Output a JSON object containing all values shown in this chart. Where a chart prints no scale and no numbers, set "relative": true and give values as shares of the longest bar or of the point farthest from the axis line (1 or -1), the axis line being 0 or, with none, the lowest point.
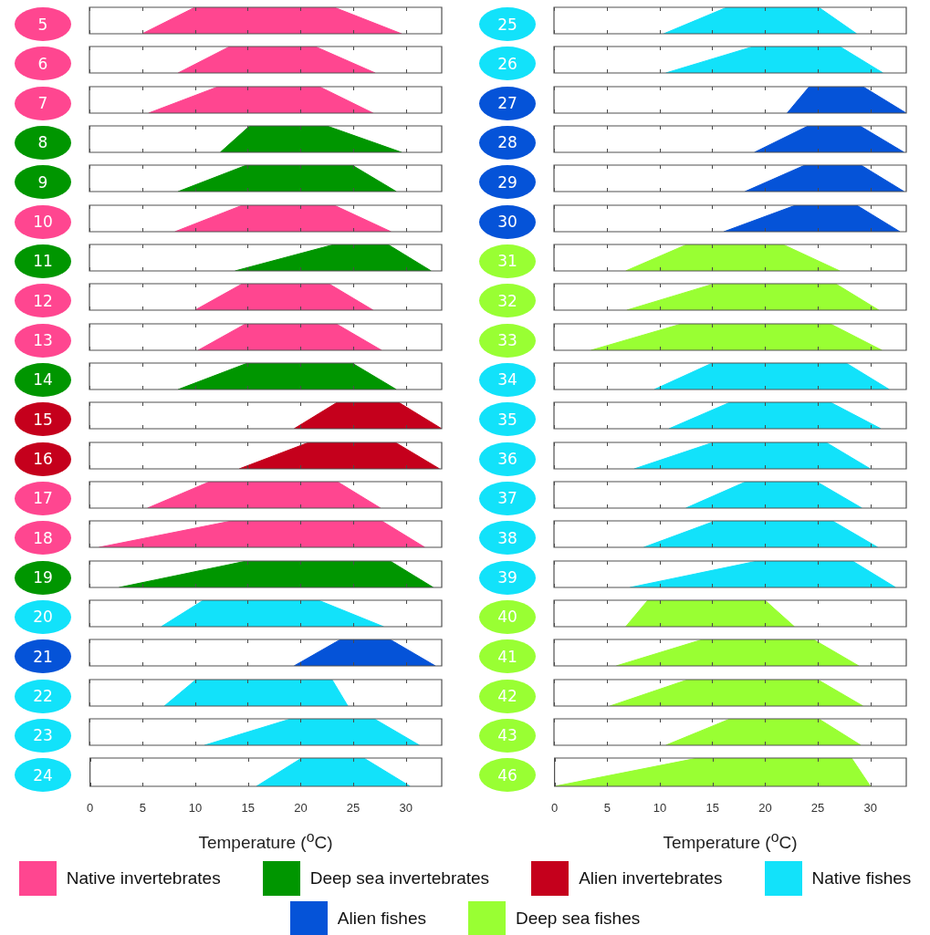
{
  "chart_data": [
    {
      "type": "area",
      "title": "5",
      "x": [
        5.0,
        10.0,
        23.2,
        29.6
      ],
      "series": [
        {
          "name": "Native invertebrates",
          "color": "#ff4690",
          "values": [
            0,
            1,
            1,
            0
          ]
        }
      ],
      "relative": true,
      "xlim": [
        0,
        33.4
      ],
      "xticks": [
        0,
        5,
        10,
        15,
        20,
        25,
        30
      ],
      "tick_labels": false,
      "legend": "bottom"
    },
    {
      "type": "area",
      "title": "6",
      "x": [
        8.4,
        13.3,
        21.4,
        27.1
      ],
      "series": [
        {
          "name": "Native invertebrates",
          "color": "#ff4690",
          "values": [
            0,
            1,
            1,
            0
          ]
        }
      ],
      "relative": true,
      "xlim": [
        0,
        33.4
      ],
      "xticks": [
        0,
        5,
        10,
        15,
        20,
        25,
        30
      ],
      "tick_labels": false,
      "legend": "bottom"
    },
    {
      "type": "area",
      "title": "7",
      "x": [
        5.6,
        12.2,
        21.8,
        26.9
      ],
      "series": [
        {
          "name": "Native invertebrates",
          "color": "#ff4690",
          "values": [
            0,
            1,
            1,
            0
          ]
        }
      ],
      "relative": true,
      "xlim": [
        0,
        33.4
      ],
      "xticks": [
        0,
        5,
        10,
        15,
        20,
        25,
        30
      ],
      "tick_labels": false,
      "legend": "bottom"
    },
    {
      "type": "area",
      "title": "8",
      "x": [
        12.4,
        15.2,
        22.5,
        29.6
      ],
      "series": [
        {
          "name": "Deep sea invertebrates",
          "color": "#009600",
          "values": [
            0,
            1,
            1,
            0
          ]
        }
      ],
      "relative": true,
      "xlim": [
        0,
        33.4
      ],
      "xticks": [
        0,
        5,
        10,
        15,
        20,
        25,
        30
      ],
      "tick_labels": false,
      "legend": "bottom"
    },
    {
      "type": "area",
      "title": "9",
      "x": [
        8.4,
        14.9,
        24.9,
        29.1
      ],
      "series": [
        {
          "name": "Deep sea invertebrates",
          "color": "#009600",
          "values": [
            0,
            1,
            1,
            0
          ]
        }
      ],
      "relative": true,
      "xlim": [
        0,
        33.4
      ],
      "xticks": [
        0,
        5,
        10,
        15,
        20,
        25,
        30
      ],
      "tick_labels": false,
      "legend": "bottom"
    },
    {
      "type": "area",
      "title": "10",
      "x": [
        8.1,
        14.5,
        23.2,
        28.6
      ],
      "series": [
        {
          "name": "Native invertebrates",
          "color": "#ff4690",
          "values": [
            0,
            1,
            1,
            0
          ]
        }
      ],
      "relative": true,
      "xlim": [
        0,
        33.4
      ],
      "xticks": [
        0,
        5,
        10,
        15,
        20,
        25,
        30
      ],
      "tick_labels": false,
      "legend": "bottom"
    },
    {
      "type": "area",
      "title": "11",
      "x": [
        13.8,
        23.2,
        28.3,
        32.4
      ],
      "series": [
        {
          "name": "Deep sea invertebrates",
          "color": "#009600",
          "values": [
            0,
            1,
            1,
            0
          ]
        }
      ],
      "relative": true,
      "xlim": [
        0,
        33.4
      ],
      "xticks": [
        0,
        5,
        10,
        15,
        20,
        25,
        30
      ],
      "tick_labels": false,
      "legend": "bottom"
    },
    {
      "type": "area",
      "title": "12",
      "x": [
        10.0,
        14.5,
        22.7,
        26.9
      ],
      "series": [
        {
          "name": "Native invertebrates",
          "color": "#ff4690",
          "values": [
            0,
            1,
            1,
            0
          ]
        }
      ],
      "relative": true,
      "xlim": [
        0,
        33.4
      ],
      "xticks": [
        0,
        5,
        10,
        15,
        20,
        25,
        30
      ],
      "tick_labels": false,
      "legend": "bottom"
    },
    {
      "type": "area",
      "title": "13",
      "x": [
        10.3,
        14.8,
        23.4,
        27.7
      ],
      "series": [
        {
          "name": "Native invertebrates",
          "color": "#ff4690",
          "values": [
            0,
            1,
            1,
            0
          ]
        }
      ],
      "relative": true,
      "xlim": [
        0,
        33.4
      ],
      "xticks": [
        0,
        5,
        10,
        15,
        20,
        25,
        30
      ],
      "tick_labels": false,
      "legend": "bottom"
    },
    {
      "type": "area",
      "title": "14",
      "x": [
        8.4,
        15.0,
        24.9,
        29.1
      ],
      "series": [
        {
          "name": "Deep sea invertebrates",
          "color": "#009600",
          "values": [
            0,
            1,
            1,
            0
          ]
        }
      ],
      "relative": true,
      "xlim": [
        0,
        33.4
      ],
      "xticks": [
        0,
        5,
        10,
        15,
        20,
        25,
        30
      ],
      "tick_labels": false,
      "legend": "bottom"
    },
    {
      "type": "area",
      "title": "15",
      "x": [
        19.4,
        23.5,
        29.3,
        33.4
      ],
      "series": [
        {
          "name": "Alien invertebrates",
          "color": "#c5001c",
          "values": [
            0,
            1,
            1,
            0
          ]
        }
      ],
      "relative": true,
      "xlim": [
        0,
        33.4
      ],
      "xticks": [
        0,
        5,
        10,
        15,
        20,
        25,
        30
      ],
      "tick_labels": false,
      "legend": "bottom"
    },
    {
      "type": "area",
      "title": "16",
      "x": [
        14.2,
        20.8,
        29.0,
        33.2
      ],
      "series": [
        {
          "name": "Alien invertebrates",
          "color": "#c5001c",
          "values": [
            0,
            1,
            1,
            0
          ]
        }
      ],
      "relative": true,
      "xlim": [
        0,
        33.4
      ],
      "xticks": [
        0,
        5,
        10,
        15,
        20,
        25,
        30
      ],
      "tick_labels": false,
      "legend": "bottom"
    },
    {
      "type": "area",
      "title": "17",
      "x": [
        5.5,
        11.4,
        23.5,
        27.6
      ],
      "series": [
        {
          "name": "Native invertebrates",
          "color": "#ff4690",
          "values": [
            0,
            1,
            1,
            0
          ]
        }
      ],
      "relative": true,
      "xlim": [
        0,
        33.4
      ],
      "xticks": [
        0,
        5,
        10,
        15,
        20,
        25,
        30
      ],
      "tick_labels": false,
      "legend": "bottom"
    },
    {
      "type": "area",
      "title": "18",
      "x": [
        0.9,
        13.5,
        27.7,
        31.8
      ],
      "series": [
        {
          "name": "Native invertebrates",
          "color": "#ff4690",
          "values": [
            0,
            1,
            1,
            0
          ]
        }
      ],
      "relative": true,
      "xlim": [
        0,
        33.4
      ],
      "xticks": [
        0,
        5,
        10,
        15,
        20,
        25,
        30
      ],
      "tick_labels": false,
      "legend": "bottom"
    },
    {
      "type": "area",
      "title": "19",
      "x": [
        2.8,
        14.9,
        28.5,
        32.6
      ],
      "series": [
        {
          "name": "Deep sea invertebrates",
          "color": "#009600",
          "values": [
            0,
            1,
            1,
            0
          ]
        }
      ],
      "relative": true,
      "xlim": [
        0,
        33.4
      ],
      "xticks": [
        0,
        5,
        10,
        15,
        20,
        25,
        30
      ],
      "tick_labels": false,
      "legend": "bottom"
    },
    {
      "type": "area",
      "title": "20",
      "x": [
        6.8,
        10.8,
        21.7,
        27.9
      ],
      "series": [
        {
          "name": "Native fishes",
          "color": "#12e2fa",
          "values": [
            0,
            1,
            1,
            0
          ]
        }
      ],
      "relative": true,
      "xlim": [
        0,
        33.4
      ],
      "xticks": [
        0,
        5,
        10,
        15,
        20,
        25,
        30
      ],
      "tick_labels": false,
      "legend": "bottom"
    },
    {
      "type": "area",
      "title": "21",
      "x": [
        19.4,
        23.8,
        28.5,
        32.8
      ],
      "series": [
        {
          "name": "Alien fishes",
          "color": "#0553d8",
          "values": [
            0,
            1,
            1,
            0
          ]
        }
      ],
      "relative": true,
      "xlim": [
        0,
        33.4
      ],
      "xticks": [
        0,
        5,
        10,
        15,
        20,
        25,
        30
      ],
      "tick_labels": false,
      "legend": "bottom"
    },
    {
      "type": "area",
      "title": "22",
      "x": [
        7.1,
        10.1,
        23.0,
        24.5
      ],
      "series": [
        {
          "name": "Native fishes",
          "color": "#12e2fa",
          "values": [
            0,
            1,
            1,
            0
          ]
        }
      ],
      "relative": true,
      "xlim": [
        0,
        33.4
      ],
      "xticks": [
        0,
        5,
        10,
        15,
        20,
        25,
        30
      ],
      "tick_labels": false,
      "legend": "bottom"
    },
    {
      "type": "area",
      "title": "23",
      "x": [
        10.9,
        19.1,
        27.0,
        31.3
      ],
      "series": [
        {
          "name": "Native fishes",
          "color": "#12e2fa",
          "values": [
            0,
            1,
            1,
            0
          ]
        }
      ],
      "relative": true,
      "xlim": [
        0,
        33.4
      ],
      "xticks": [
        0,
        5,
        10,
        15,
        20,
        25,
        30
      ],
      "tick_labels": false,
      "legend": "bottom"
    },
    {
      "type": "area",
      "title": "24",
      "xlabel": "Temperature ($^{o}$C)",
      "x": [
        15.8,
        20.1,
        26.0,
        30.4
      ],
      "series": [
        {
          "name": "Native fishes",
          "color": "#12e2fa",
          "values": [
            0,
            1,
            1,
            0
          ]
        }
      ],
      "relative": true,
      "xlim": [
        0,
        33.4
      ],
      "xticks": [
        0,
        5,
        10,
        15,
        20,
        25,
        30
      ],
      "legend": "bottom"
    },
    {
      "type": "area",
      "title": "25",
      "x": [
        10.4,
        16.4,
        25.1,
        28.7
      ],
      "series": [
        {
          "name": "Native fishes",
          "color": "#12e2fa",
          "values": [
            0,
            1,
            1,
            0
          ]
        }
      ],
      "relative": true,
      "xlim": [
        0,
        33.4
      ],
      "xticks": [
        0,
        5,
        10,
        15,
        20,
        25,
        30
      ],
      "tick_labels": false,
      "legend": "bottom"
    },
    {
      "type": "area",
      "title": "26",
      "x": [
        10.6,
        18.9,
        27.1,
        31.2
      ],
      "series": [
        {
          "name": "Native fishes",
          "color": "#12e2fa",
          "values": [
            0,
            1,
            1,
            0
          ]
        }
      ],
      "relative": true,
      "xlim": [
        0,
        33.4
      ],
      "xticks": [
        0,
        5,
        10,
        15,
        20,
        25,
        30
      ],
      "tick_labels": false,
      "legend": "bottom"
    },
    {
      "type": "area",
      "title": "27",
      "x": [
        22.1,
        24.2,
        29.3,
        33.4
      ],
      "series": [
        {
          "name": "Alien fishes",
          "color": "#0553d8",
          "values": [
            0,
            1,
            1,
            0
          ]
        }
      ],
      "relative": true,
      "xlim": [
        0,
        33.4
      ],
      "xticks": [
        0,
        5,
        10,
        15,
        20,
        25,
        30
      ],
      "tick_labels": false,
      "legend": "bottom"
    },
    {
      "type": "area",
      "title": "28",
      "x": [
        19.0,
        24.1,
        29.0,
        33.2
      ],
      "series": [
        {
          "name": "Alien fishes",
          "color": "#0553d8",
          "values": [
            0,
            1,
            1,
            0
          ]
        }
      ],
      "relative": true,
      "xlim": [
        0,
        33.4
      ],
      "xticks": [
        0,
        5,
        10,
        15,
        20,
        25,
        30
      ],
      "tick_labels": false,
      "legend": "bottom"
    },
    {
      "type": "area",
      "title": "29",
      "x": [
        18.1,
        23.8,
        29.1,
        33.2
      ],
      "series": [
        {
          "name": "Alien fishes",
          "color": "#0553d8",
          "values": [
            0,
            1,
            1,
            0
          ]
        }
      ],
      "relative": true,
      "xlim": [
        0,
        33.4
      ],
      "xticks": [
        0,
        5,
        10,
        15,
        20,
        25,
        30
      ],
      "tick_labels": false,
      "legend": "bottom"
    },
    {
      "type": "area",
      "title": "30",
      "x": [
        16.1,
        22.9,
        28.7,
        32.8
      ],
      "series": [
        {
          "name": "Alien fishes",
          "color": "#0553d8",
          "values": [
            0,
            1,
            1,
            0
          ]
        }
      ],
      "relative": true,
      "xlim": [
        0,
        33.4
      ],
      "xticks": [
        0,
        5,
        10,
        15,
        20,
        25,
        30
      ],
      "tick_labels": false,
      "legend": "bottom"
    },
    {
      "type": "area",
      "title": "31",
      "x": [
        6.8,
        12.6,
        21.7,
        27.1
      ],
      "series": [
        {
          "name": "Deep sea fishes",
          "color": "#99ff33",
          "values": [
            0,
            1,
            1,
            0
          ]
        }
      ],
      "relative": true,
      "xlim": [
        0,
        33.4
      ],
      "xticks": [
        0,
        5,
        10,
        15,
        20,
        25,
        30
      ],
      "tick_labels": false,
      "legend": "bottom"
    },
    {
      "type": "area",
      "title": "32",
      "x": [
        6.9,
        15.2,
        26.7,
        30.8
      ],
      "series": [
        {
          "name": "Deep sea fishes",
          "color": "#99ff33",
          "values": [
            0,
            1,
            1,
            0
          ]
        }
      ],
      "relative": true,
      "xlim": [
        0,
        33.4
      ],
      "xticks": [
        0,
        5,
        10,
        15,
        20,
        25,
        30
      ],
      "tick_labels": false,
      "legend": "bottom"
    },
    {
      "type": "area",
      "title": "33",
      "x": [
        3.5,
        12.1,
        26.2,
        31.1
      ],
      "series": [
        {
          "name": "Deep sea fishes",
          "color": "#99ff33",
          "values": [
            0,
            1,
            1,
            0
          ]
        }
      ],
      "relative": true,
      "xlim": [
        0,
        33.4
      ],
      "xticks": [
        0,
        5,
        10,
        15,
        20,
        25,
        30
      ],
      "tick_labels": false,
      "legend": "bottom"
    },
    {
      "type": "area",
      "title": "34",
      "x": [
        9.5,
        15.0,
        27.7,
        31.8
      ],
      "series": [
        {
          "name": "Native fishes",
          "color": "#12e2fa",
          "values": [
            0,
            1,
            1,
            0
          ]
        }
      ],
      "relative": true,
      "xlim": [
        0,
        33.4
      ],
      "xticks": [
        0,
        5,
        10,
        15,
        20,
        25,
        30
      ],
      "tick_labels": false,
      "legend": "bottom"
    },
    {
      "type": "area",
      "title": "35",
      "x": [
        10.9,
        16.7,
        26.2,
        31.0
      ],
      "series": [
        {
          "name": "Native fishes",
          "color": "#12e2fa",
          "values": [
            0,
            1,
            1,
            0
          ]
        }
      ],
      "relative": true,
      "xlim": [
        0,
        33.4
      ],
      "xticks": [
        0,
        5,
        10,
        15,
        20,
        25,
        30
      ],
      "tick_labels": false,
      "legend": "bottom"
    },
    {
      "type": "area",
      "title": "36",
      "x": [
        7.6,
        15.1,
        25.8,
        30.0
      ],
      "series": [
        {
          "name": "Native fishes",
          "color": "#12e2fa",
          "values": [
            0,
            1,
            1,
            0
          ]
        }
      ],
      "relative": true,
      "xlim": [
        0,
        33.4
      ],
      "xticks": [
        0,
        5,
        10,
        15,
        20,
        25,
        30
      ],
      "tick_labels": false,
      "legend": "bottom"
    },
    {
      "type": "area",
      "title": "37",
      "x": [
        12.5,
        18.2,
        24.9,
        29.2
      ],
      "series": [
        {
          "name": "Native fishes",
          "color": "#12e2fa",
          "values": [
            0,
            1,
            1,
            0
          ]
        }
      ],
      "relative": true,
      "xlim": [
        0,
        33.4
      ],
      "xticks": [
        0,
        5,
        10,
        15,
        20,
        25,
        30
      ],
      "tick_labels": false,
      "legend": "bottom"
    },
    {
      "type": "area",
      "title": "38",
      "x": [
        8.5,
        15.3,
        26.4,
        30.7
      ],
      "series": [
        {
          "name": "Native fishes",
          "color": "#12e2fa",
          "values": [
            0,
            1,
            1,
            0
          ]
        }
      ],
      "relative": true,
      "xlim": [
        0,
        33.4
      ],
      "xticks": [
        0,
        5,
        10,
        15,
        20,
        25,
        30
      ],
      "tick_labels": false,
      "legend": "bottom"
    },
    {
      "type": "area",
      "title": "39",
      "x": [
        7.2,
        19.3,
        28.3,
        32.4
      ],
      "series": [
        {
          "name": "Native fishes",
          "color": "#12e2fa",
          "values": [
            0,
            1,
            1,
            0
          ]
        }
      ],
      "relative": true,
      "xlim": [
        0,
        33.4
      ],
      "xticks": [
        0,
        5,
        10,
        15,
        20,
        25,
        30
      ],
      "tick_labels": false,
      "legend": "bottom"
    },
    {
      "type": "area",
      "title": "40",
      "x": [
        6.8,
        8.9,
        20.0,
        22.8
      ],
      "series": [
        {
          "name": "Deep sea fishes",
          "color": "#99ff33",
          "values": [
            0,
            1,
            1,
            0
          ]
        }
      ],
      "relative": true,
      "xlim": [
        0,
        33.4
      ],
      "xticks": [
        0,
        5,
        10,
        15,
        20,
        25,
        30
      ],
      "tick_labels": false,
      "legend": "bottom"
    },
    {
      "type": "area",
      "title": "41",
      "x": [
        5.9,
        14.1,
        24.6,
        28.9
      ],
      "series": [
        {
          "name": "Deep sea fishes",
          "color": "#99ff33",
          "values": [
            0,
            1,
            1,
            0
          ]
        }
      ],
      "relative": true,
      "xlim": [
        0,
        33.4
      ],
      "xticks": [
        0,
        5,
        10,
        15,
        20,
        25,
        30
      ],
      "tick_labels": false,
      "legend": "bottom"
    },
    {
      "type": "area",
      "title": "42",
      "x": [
        5.3,
        12.7,
        25.0,
        29.3
      ],
      "series": [
        {
          "name": "Deep sea fishes",
          "color": "#99ff33",
          "values": [
            0,
            1,
            1,
            0
          ]
        }
      ],
      "relative": true,
      "xlim": [
        0,
        33.4
      ],
      "xticks": [
        0,
        5,
        10,
        15,
        20,
        25,
        30
      ],
      "tick_labels": false,
      "legend": "bottom"
    },
    {
      "type": "area",
      "title": "43",
      "x": [
        10.6,
        16.7,
        25.1,
        29.1
      ],
      "series": [
        {
          "name": "Deep sea fishes",
          "color": "#99ff33",
          "values": [
            0,
            1,
            1,
            0
          ]
        }
      ],
      "relative": true,
      "xlim": [
        0,
        33.4
      ],
      "xticks": [
        0,
        5,
        10,
        15,
        20,
        25,
        30
      ],
      "tick_labels": false,
      "legend": "bottom"
    },
    {
      "type": "area",
      "title": "46",
      "xlabel": "Temperature ($^{o}$C)",
      "x": [
        0,
        13.6,
        28.2,
        30.0
      ],
      "series": [
        {
          "name": "Deep sea fishes",
          "color": "#99ff33",
          "values": [
            0,
            1,
            1,
            0
          ]
        }
      ],
      "relative": true,
      "xlim": [
        0,
        33.4
      ],
      "xticks": [
        0,
        5,
        10,
        15,
        20,
        25,
        30
      ],
      "legend": "bottom"
    }
  ]
}
